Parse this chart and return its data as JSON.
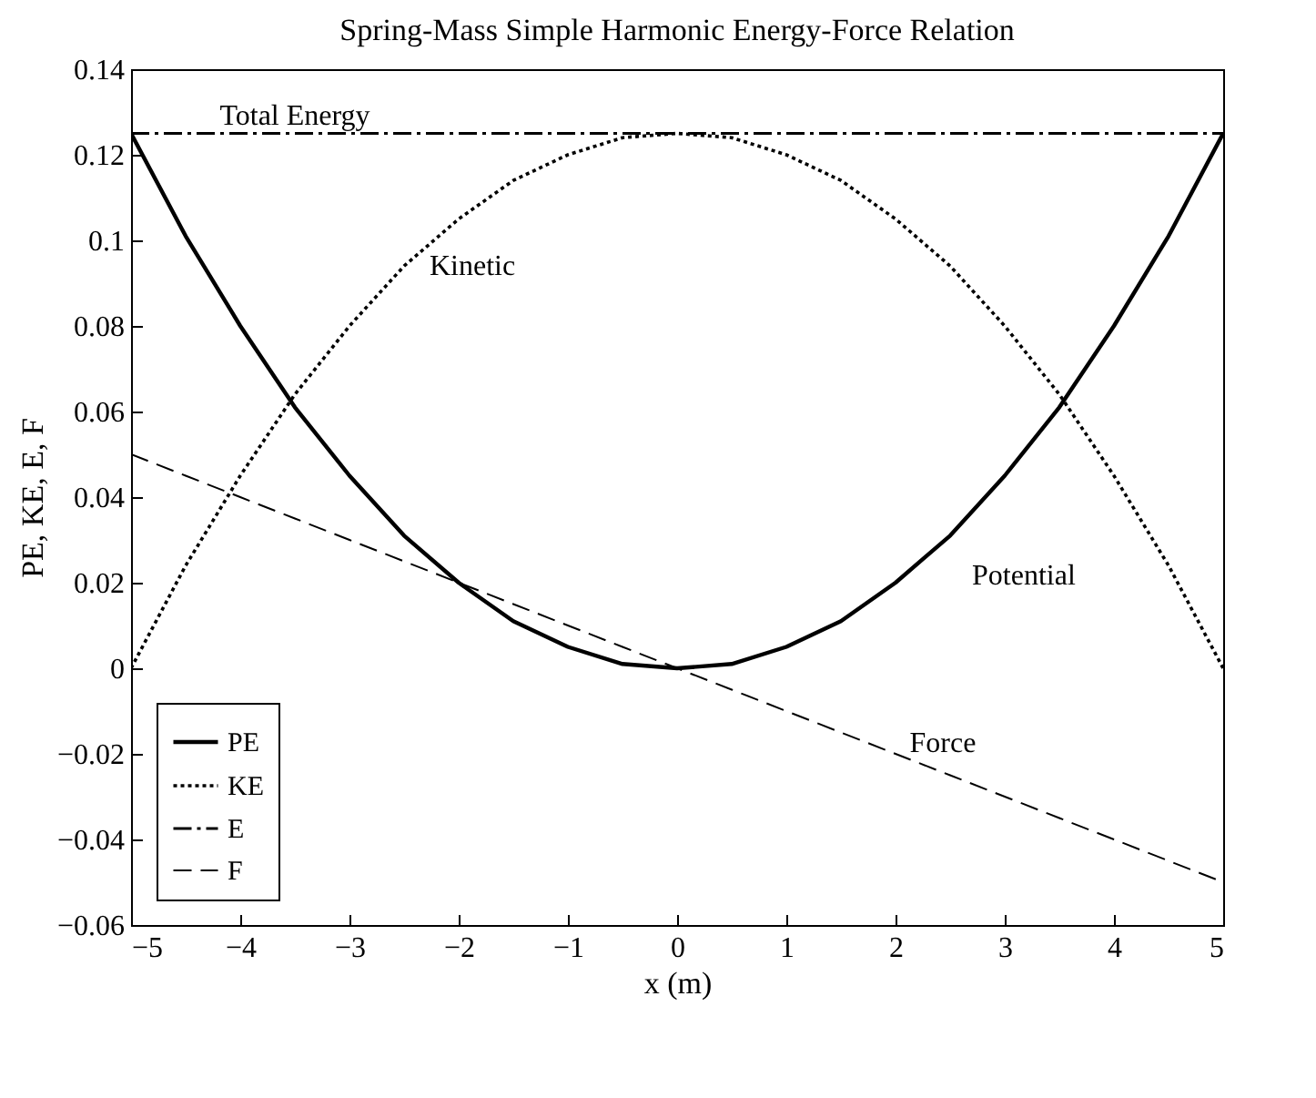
{
  "chart_data": {
    "type": "line",
    "title": "Spring-Mass Simple Harmonic Energy-Force Relation",
    "xlabel": "x (m)",
    "ylabel": "PE, KE, E, F",
    "x": [
      -5,
      -4.5,
      -4,
      -3.5,
      -3,
      -2.5,
      -2,
      -1.5,
      -1,
      -0.5,
      0,
      0.5,
      1,
      1.5,
      2,
      2.5,
      3,
      3.5,
      4,
      4.5,
      5
    ],
    "series": [
      {
        "name": "PE",
        "color": "#000000",
        "line_style": "solid",
        "values": [
          0.125,
          0.101,
          0.08,
          0.061,
          0.045,
          0.031,
          0.02,
          0.011,
          0.005,
          0.001,
          0,
          0.001,
          0.005,
          0.011,
          0.02,
          0.031,
          0.045,
          0.061,
          0.08,
          0.101,
          0.125
        ]
      },
      {
        "name": "KE",
        "color": "#000000",
        "line_style": "dotted",
        "values": [
          0,
          0.024,
          0.045,
          0.064,
          0.08,
          0.094,
          0.105,
          0.114,
          0.12,
          0.124,
          0.125,
          0.124,
          0.12,
          0.114,
          0.105,
          0.094,
          0.08,
          0.064,
          0.045,
          0.024,
          0
        ]
      },
      {
        "name": "E",
        "color": "#000000",
        "line_style": "dashdot",
        "values": [
          0.125,
          0.125,
          0.125,
          0.125,
          0.125,
          0.125,
          0.125,
          0.125,
          0.125,
          0.125,
          0.125,
          0.125,
          0.125,
          0.125,
          0.125,
          0.125,
          0.125,
          0.125,
          0.125,
          0.125,
          0.125
        ]
      },
      {
        "name": "F",
        "color": "#000000",
        "line_style": "dashed",
        "values": [
          0.05,
          0.045,
          0.04,
          0.035,
          0.03,
          0.025,
          0.02,
          0.015,
          0.01,
          0.005,
          0,
          -0.005,
          -0.01,
          -0.015,
          -0.02,
          -0.025,
          -0.03,
          -0.035,
          -0.04,
          -0.045,
          -0.05
        ]
      }
    ],
    "xlim": [
      -5,
      5
    ],
    "xticks": [
      {
        "value": -5,
        "label": "−5"
      },
      {
        "value": -4,
        "label": "−4"
      },
      {
        "value": -3,
        "label": "−3"
      },
      {
        "value": -2,
        "label": "−2"
      },
      {
        "value": -1,
        "label": "−1"
      },
      0,
      1,
      2,
      3,
      4,
      5
    ],
    "ylim": [
      -0.06,
      0.14
    ],
    "yticks": [
      {
        "value": -0.06,
        "label": "−0.06"
      },
      {
        "value": -0.04,
        "label": "−0.04"
      },
      {
        "value": -0.02,
        "label": "−0.02"
      },
      0,
      0.02,
      0.04,
      0.06,
      0.08,
      0.1,
      0.12,
      0.14
    ],
    "annotations": [
      {
        "text": "Total Energy",
        "x": -3.5,
        "y": 0.125
      },
      {
        "text": "Kinetic",
        "x": -2.5,
        "y": 0.094
      },
      {
        "text": "Potential",
        "x": 2.5,
        "y": 0.031
      },
      {
        "text": "Force",
        "x": 2.5,
        "y": -0.025
      }
    ],
    "legend": "bottom left",
    "grid": false
  }
}
